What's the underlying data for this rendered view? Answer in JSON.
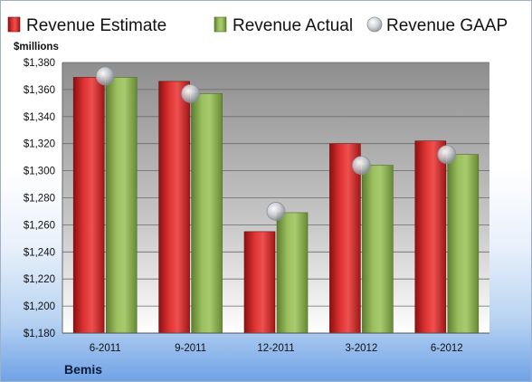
{
  "company": "Bemis",
  "chart_data": {
    "type": "bar",
    "unit_label": "$millions",
    "categories": [
      "6-2011",
      "9-2011",
      "12-2011",
      "3-2012",
      "6-2012"
    ],
    "series": [
      {
        "name": "Revenue Estimate",
        "kind": "bar",
        "color": "#d62828",
        "values": [
          1369,
          1366,
          1255,
          1320,
          1322
        ]
      },
      {
        "name": "Revenue Actual",
        "kind": "bar",
        "color": "#8cb050",
        "values": [
          1369,
          1357,
          1269,
          1304,
          1312
        ]
      },
      {
        "name": "Revenue GAAP",
        "kind": "marker",
        "color": "#b8bcc4",
        "values": [
          1370,
          1357,
          1270,
          1304,
          1312
        ]
      }
    ],
    "ylim": [
      1180,
      1380
    ],
    "yticks": [
      1180,
      1200,
      1220,
      1240,
      1260,
      1280,
      1300,
      1320,
      1340,
      1360,
      1380
    ],
    "ytick_labels": [
      "$1,180",
      "$1,200",
      "$1,220",
      "$1,240",
      "$1,260",
      "$1,280",
      "$1,300",
      "$1,320",
      "$1,340",
      "$1,360",
      "$1,380"
    ],
    "grid": true,
    "legend": "top"
  }
}
